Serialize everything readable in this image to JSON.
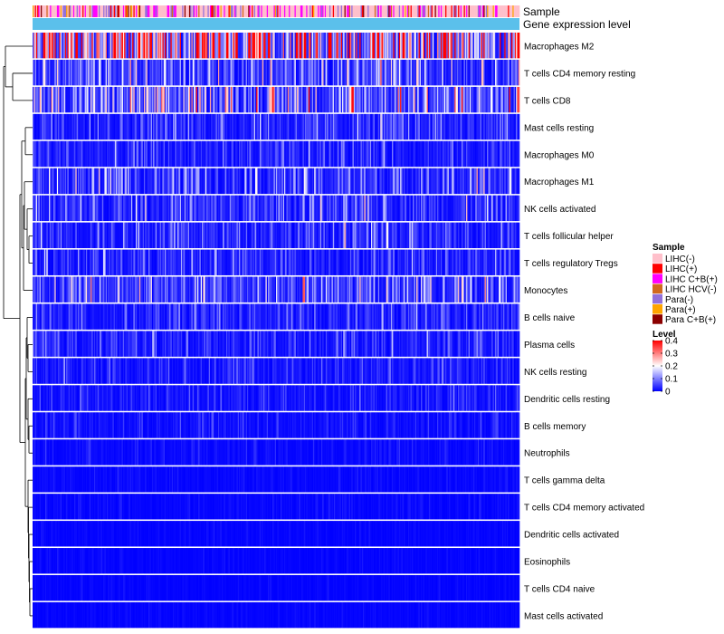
{
  "chart_data": {
    "type": "heatmap",
    "title": "",
    "annotation_tracks": [
      {
        "label": "Sample"
      },
      {
        "label": "Gene expression level",
        "color": "#5BC0EB"
      }
    ],
    "rows": [
      {
        "name": "Macrophages M2",
        "mean": 0.24
      },
      {
        "name": "T cells CD4 memory resting",
        "mean": 0.07
      },
      {
        "name": "T cells CD8",
        "mean": 0.1
      },
      {
        "name": "Mast cells resting",
        "mean": 0.04
      },
      {
        "name": "Macrophages M0",
        "mean": 0.03
      },
      {
        "name": "Macrophages M1",
        "mean": 0.05
      },
      {
        "name": "NK cells activated",
        "mean": 0.045
      },
      {
        "name": "T cells follicular helper",
        "mean": 0.04
      },
      {
        "name": "T cells regulatory  Tregs",
        "mean": 0.035
      },
      {
        "name": "Monocytes",
        "mean": 0.065
      },
      {
        "name": "B cells naive",
        "mean": 0.03
      },
      {
        "name": "Plasma cells",
        "mean": 0.03
      },
      {
        "name": "NK cells resting",
        "mean": 0.025
      },
      {
        "name": "Dendritic cells resting",
        "mean": 0.02
      },
      {
        "name": "B cells memory",
        "mean": 0.015
      },
      {
        "name": "Neutrophils",
        "mean": 0.01
      },
      {
        "name": "T cells gamma delta",
        "mean": 0.006
      },
      {
        "name": "T cells CD4 memory activated",
        "mean": 0.006
      },
      {
        "name": "Dendritic cells activated",
        "mean": 0.004
      },
      {
        "name": "Eosinophils",
        "mean": 0.004
      },
      {
        "name": "T cells CD4 naive",
        "mean": 0.003
      },
      {
        "name": "Mast cells activated",
        "mean": 0.004
      }
    ],
    "sample_groups": [
      {
        "label": "LIHC(-)",
        "color": "#FFC0CB",
        "weight": 0.55
      },
      {
        "label": "LIHC(+)",
        "color": "#FF0000",
        "weight": 0.06
      },
      {
        "label": "LIHC C+B(+)",
        "color": "#FF00FF",
        "weight": 0.16
      },
      {
        "label": "LIHC HCV(-)",
        "color": "#D2691E",
        "weight": 0.04
      },
      {
        "label": "Para(-)",
        "color": "#9370DB",
        "weight": 0.12
      },
      {
        "label": "Para(+)",
        "color": "#FFA500",
        "weight": 0.04
      },
      {
        "label": "Para C+B(+)",
        "color": "#8B0000",
        "weight": 0.03
      }
    ],
    "color_scale": {
      "title": "Level",
      "range": [
        0,
        0.4
      ],
      "ticks": [
        "0.4",
        "0.3",
        "0.2",
        "0.1",
        "0"
      ],
      "colors": [
        "#0000FF",
        "#FFFFFF",
        "#FF0000"
      ]
    },
    "legend_titles": {
      "sample": "Sample",
      "level": "Level"
    },
    "legend_position": "right",
    "dendrogram": "left"
  }
}
